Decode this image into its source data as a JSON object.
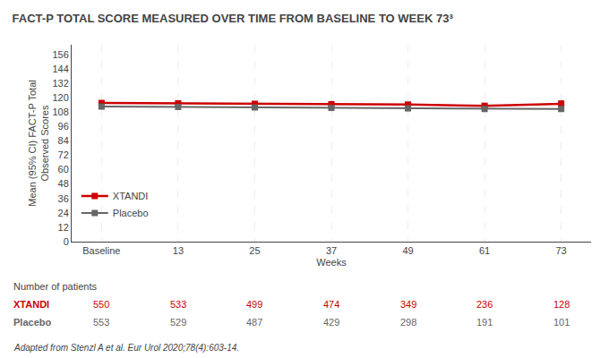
{
  "chart_data": {
    "type": "line",
    "title": "FACT-P TOTAL SCORE MEASURED OVER TIME FROM BASELINE TO WEEK 73³",
    "x_label": "Weeks",
    "y_label": "Mean (95% CI) FACT-P Total\nObserved Scores",
    "categories": [
      "Baseline",
      "13",
      "25",
      "37",
      "49",
      "61",
      "73"
    ],
    "series": [
      {
        "name": "XTANDI",
        "color": "#CC0000",
        "values": [
          115.5,
          115.2,
          114.8,
          114.5,
          114.2,
          113.2,
          114.8
        ],
        "ci_low": [
          114.3,
          114.0,
          113.6,
          113.2,
          112.8,
          111.5,
          112.5
        ],
        "ci_high": [
          116.7,
          116.4,
          116.0,
          115.8,
          115.6,
          114.9,
          117.1
        ]
      },
      {
        "name": "Placebo",
        "color": "#666666",
        "values": [
          112.5,
          112.2,
          111.8,
          111.4,
          111.0,
          110.5,
          110.5
        ],
        "ci_low": [
          111.3,
          111.0,
          110.5,
          110.0,
          109.5,
          108.8,
          108.5
        ],
        "ci_high": [
          113.7,
          113.4,
          113.1,
          112.8,
          112.5,
          112.2,
          112.5
        ]
      }
    ],
    "ylim": [
      0,
      164
    ],
    "yticks": [
      0,
      12,
      24,
      36,
      48,
      60,
      72,
      84,
      96,
      108,
      120,
      132,
      144,
      156
    ],
    "grid": "x",
    "legend": "lower left",
    "marker": "square",
    "number_of_patients": {
      "title": "Number of patients",
      "rows": [
        {
          "name": "XTANDI",
          "values": [
            550,
            533,
            499,
            474,
            349,
            236,
            128
          ]
        },
        {
          "name": "Placebo",
          "values": [
            553,
            529,
            487,
            429,
            298,
            191,
            101
          ]
        }
      ]
    },
    "annotations": [
      "Adapted from Stenzl A et al. Eur Urol 2020;78(4):603-14."
    ]
  }
}
